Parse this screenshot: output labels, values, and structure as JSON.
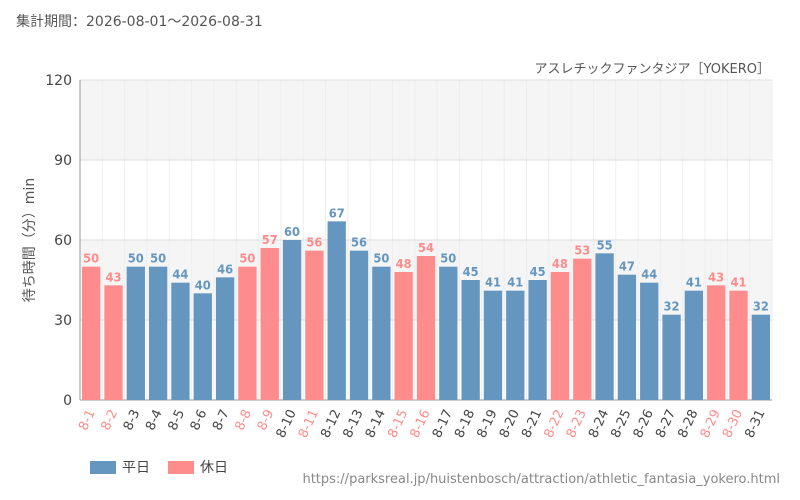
{
  "header": {
    "period": "集計期間：2026-08-01～2026-08-31"
  },
  "source": "https://parksreal.jp/huistenbosch/attraction/athletic_fantasia_yokero.html",
  "legend": {
    "weekday": "平日",
    "holiday": "休日"
  },
  "colors": {
    "weekday": "#6596C0",
    "holiday": "#FF8C8C",
    "grid": "#dddddd",
    "band": "#f5f5f5"
  },
  "chart_data": {
    "type": "bar",
    "subtitle": "アスレチックファンタジア［YOKERO］",
    "ylabel": "待ち時間（分）min",
    "xlabel": "",
    "ylim": [
      0,
      120
    ],
    "yticks": [
      0,
      30,
      60,
      90,
      120
    ],
    "grid": true,
    "legend_position": "bottom-left",
    "categories": [
      "8-1",
      "8-2",
      "8-3",
      "8-4",
      "8-5",
      "8-6",
      "8-7",
      "8-8",
      "8-9",
      "8-10",
      "8-11",
      "8-12",
      "8-13",
      "8-14",
      "8-15",
      "8-16",
      "8-17",
      "8-18",
      "8-19",
      "8-20",
      "8-21",
      "8-22",
      "8-23",
      "8-24",
      "8-25",
      "8-26",
      "8-27",
      "8-28",
      "8-29",
      "8-30",
      "8-31"
    ],
    "values": [
      50,
      43,
      50,
      50,
      44,
      40,
      46,
      50,
      57,
      60,
      56,
      67,
      56,
      50,
      48,
      54,
      50,
      45,
      41,
      41,
      45,
      48,
      53,
      55,
      47,
      44,
      32,
      41,
      43,
      41,
      32
    ],
    "day_type": [
      "holiday",
      "holiday",
      "weekday",
      "weekday",
      "weekday",
      "weekday",
      "weekday",
      "holiday",
      "holiday",
      "weekday",
      "holiday",
      "weekday",
      "weekday",
      "weekday",
      "holiday",
      "holiday",
      "weekday",
      "weekday",
      "weekday",
      "weekday",
      "weekday",
      "holiday",
      "holiday",
      "weekday",
      "weekday",
      "weekday",
      "weekday",
      "weekday",
      "holiday",
      "holiday",
      "weekday"
    ]
  }
}
